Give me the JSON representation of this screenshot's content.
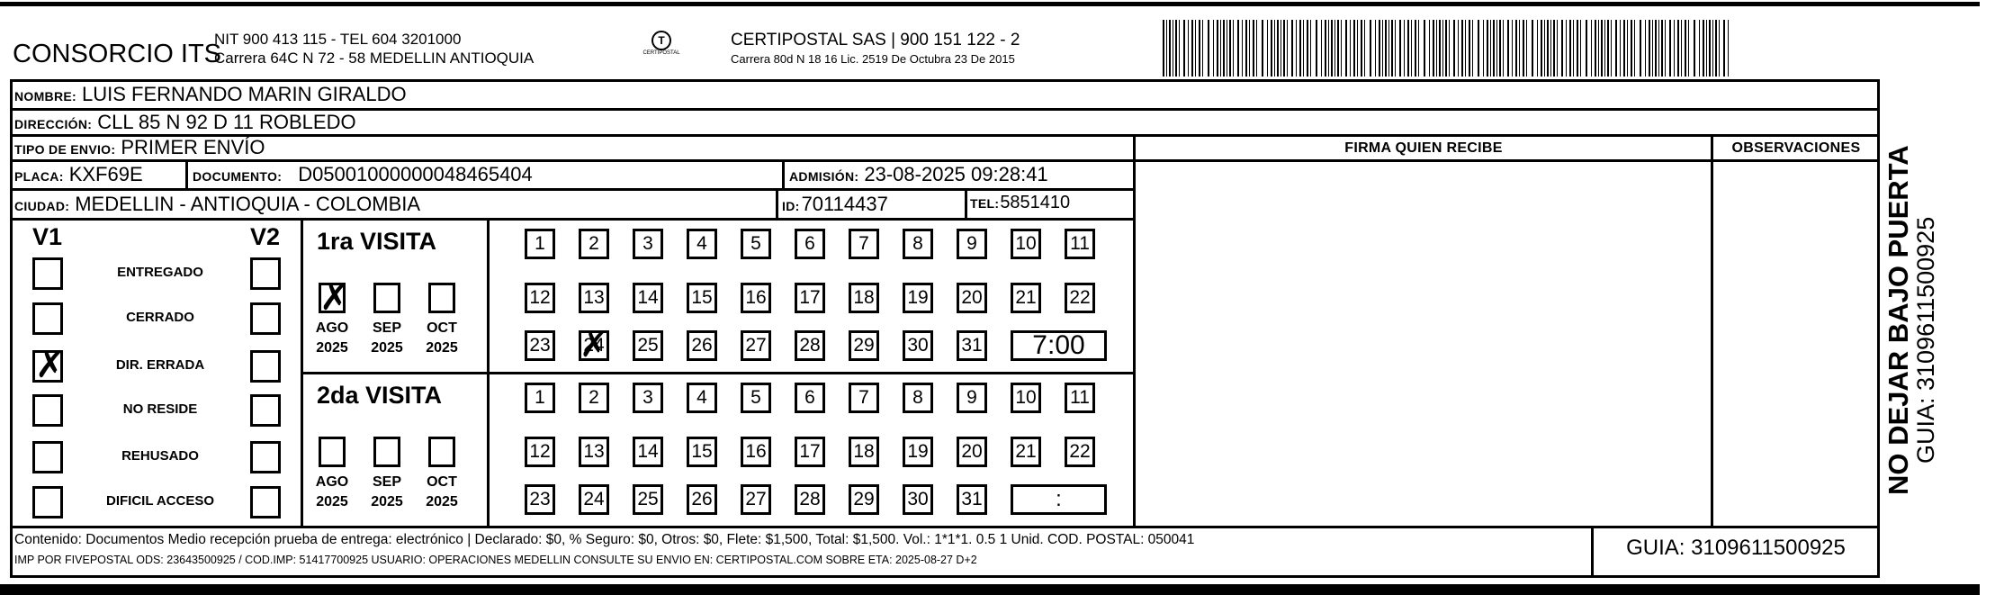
{
  "header": {
    "company": "CONSORCIO ITS",
    "company_line1": "NIT 900 413 115 - TEL 604 3201000",
    "company_line2": "Carrera 64C N 72 - 58 MEDELLIN ANTIOQUIA",
    "logo_text": "CERTIPOSTAL",
    "carrier_line1": "CERTIPOSTAL SAS | 900 151 122 - 2",
    "carrier_line2": "Carrera 80d N 18 16  Lic. 2519 De Octubra 23 De 2015",
    "barcode_icon": "barcode-icon"
  },
  "fields": {
    "nombre_label": "NOMBRE:",
    "nombre": "LUIS FERNANDO MARIN GIRALDO",
    "direccion_label": "DIRECCIÓN:",
    "direccion": "CLL 85 N 92 D 11 ROBLEDO",
    "tipo_label": "TIPO DE ENVIO:",
    "tipo": "PRIMER ENVÍO",
    "placa_label": "PLACA:",
    "placa": "KXF69E",
    "documento_label": "DOCUMENTO:",
    "documento": "D05001000000048465404",
    "admision_label": "ADMISIÓN:",
    "admision": "23-08-2025 09:28:41",
    "ciudad_label": "CIUDAD:",
    "ciudad": "MEDELLIN - ANTIOQUIA - COLOMBIA",
    "id_label": "ID:",
    "id": "70114437",
    "tel_label": "TEL:",
    "tel": "5851410"
  },
  "firma_header": "FIRMA QUIEN RECIBE",
  "observaciones_header": "OBSERVACIONES",
  "status": {
    "v1": "V1",
    "v2": "V2",
    "options": [
      {
        "label": "ENTREGADO",
        "v1": false,
        "v2": false
      },
      {
        "label": "CERRADO",
        "v1": false,
        "v2": false
      },
      {
        "label": "DIR. ERRADA",
        "v1": true,
        "v2": false
      },
      {
        "label": "NO RESIDE",
        "v1": false,
        "v2": false
      },
      {
        "label": "REHUSADO",
        "v1": false,
        "v2": false
      },
      {
        "label": "DIFICIL ACCESO",
        "v1": false,
        "v2": false
      }
    ]
  },
  "visits": [
    {
      "title": "1ra VISITA",
      "months": [
        {
          "m": "AGO",
          "y": "2025",
          "checked": true
        },
        {
          "m": "SEP",
          "y": "2025",
          "checked": false
        },
        {
          "m": "OCT",
          "y": "2025",
          "checked": false
        }
      ],
      "marked_day": 24,
      "time": "7:00"
    },
    {
      "title": "2da VISITA",
      "months": [
        {
          "m": "AGO",
          "y": "2025",
          "checked": false
        },
        {
          "m": "SEP",
          "y": "2025",
          "checked": false
        },
        {
          "m": "OCT",
          "y": "2025",
          "checked": false
        }
      ],
      "marked_day": null,
      "time": ":"
    }
  ],
  "footer": {
    "line1": "Contenido: Documentos Medio recepción prueba de entrega: electrónico | Declarado: $0, % Seguro: $0, Otros: $0, Flete: $1,500, Total: $1,500. Vol.: 1*1*1. 0.5  1 Unid. COD. POSTAL: 050041",
    "line2": "IMP POR FIVEPOSTAL ODS: 23643500925 / COD.IMP: 51417700925 USUARIO: OPERACIONES MEDELLIN CONSULTE SU ENVIO EN: CERTIPOSTAL.COM SOBRE ETA: 2025-08-27 D+2",
    "guia": "GUIA: 3109611500925"
  },
  "side": {
    "warning": "NO DEJAR BAJO PUERTA",
    "guia": "GUIA: 3109611500925"
  }
}
